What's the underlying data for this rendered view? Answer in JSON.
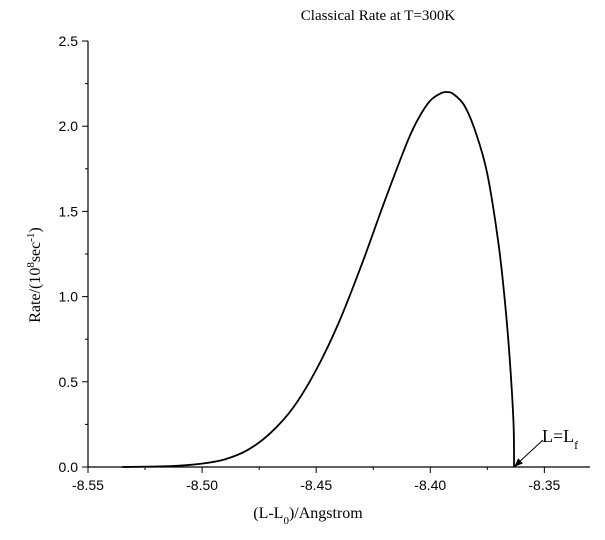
{
  "chart_data": {
    "type": "line",
    "title": "Classical Rate at T=300K",
    "xlabel": "(L-L0)/Angstrom",
    "xlabel_parts": {
      "base": "(L-L",
      "sub": "0",
      "tail": ")/Angstrom"
    },
    "ylabel": "Rate/(10^8sec^-1)",
    "ylabel_parts": {
      "prefix": "Rate/(10",
      "sup1": "8",
      "mid": "sec",
      "sup2": "-1",
      "suffix": ")"
    },
    "xlim": [
      -8.55,
      -8.33
    ],
    "ylim": [
      0.0,
      2.5
    ],
    "x_ticks": [
      -8.55,
      -8.5,
      -8.45,
      -8.4,
      -8.35
    ],
    "x_tick_labels": [
      "-8.55",
      "-8.50",
      "-8.45",
      "-8.40",
      "-8.35"
    ],
    "y_ticks": [
      0.0,
      0.5,
      1.0,
      1.5,
      2.0,
      2.5
    ],
    "y_tick_labels": [
      "0.0",
      "0.5",
      "1.0",
      "1.5",
      "2.0",
      "2.5"
    ],
    "grid": false,
    "series": [
      {
        "color": "#000000",
        "x": [
          -8.535,
          -8.52,
          -8.51,
          -8.5,
          -8.49,
          -8.48,
          -8.47,
          -8.46,
          -8.45,
          -8.44,
          -8.43,
          -8.42,
          -8.41,
          -8.405,
          -8.4,
          -8.395,
          -8.3925,
          -8.39,
          -8.385,
          -8.38,
          -8.375,
          -8.37,
          -8.367,
          -8.365,
          -8.3635,
          -8.3633
        ],
        "y": [
          0.0,
          0.003,
          0.008,
          0.02,
          0.045,
          0.1,
          0.2,
          0.35,
          0.57,
          0.85,
          1.19,
          1.56,
          1.91,
          2.05,
          2.15,
          2.195,
          2.2,
          2.19,
          2.12,
          1.96,
          1.72,
          1.3,
          0.93,
          0.6,
          0.25,
          0.0
        ]
      }
    ],
    "annotations": [
      {
        "text": "L=Lf",
        "text_parts": {
          "base": "L=L",
          "sub": "f"
        },
        "x": -8.3633,
        "y": 0.0
      }
    ]
  }
}
